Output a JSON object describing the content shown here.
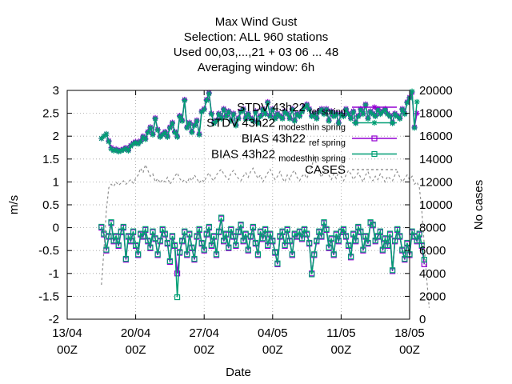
{
  "chart_data": {
    "type": "line",
    "title_lines": [
      "Max Wind Gust",
      "Selection: ALL    960 stations",
      "Used  00,03,...,21  + 03 06 ... 48",
      "Averaging window:  6h"
    ],
    "xlabel": "Date",
    "ylabel": "m/s",
    "y2label": "No cases",
    "x_ticks": [
      {
        "day": 0,
        "line1": "13/04",
        "line2": "00Z"
      },
      {
        "day": 7,
        "line1": "20/04",
        "line2": "00Z"
      },
      {
        "day": 14,
        "line1": "27/04",
        "line2": "00Z"
      },
      {
        "day": 21,
        "line1": "04/05",
        "line2": "00Z"
      },
      {
        "day": 28,
        "line1": "11/05",
        "line2": "00Z"
      },
      {
        "day": 35,
        "line1": "18/05",
        "line2": "00Z"
      }
    ],
    "xlim_days": [
      0,
      35
    ],
    "ylim": [
      -2,
      3
    ],
    "y_ticks": [
      "-2",
      "-1.5",
      "-1",
      "-0.5",
      "0",
      "0.5",
      "1",
      "1.5",
      "2",
      "2.5",
      "3"
    ],
    "y2lim": [
      0,
      20000
    ],
    "y2_ticks": [
      "0",
      "2000",
      "4000",
      "6000",
      "8000",
      "10000",
      "12000",
      "14000",
      "16000",
      "18000",
      "20000"
    ],
    "grid": true,
    "legend_position": "top-right",
    "series": [
      {
        "name": "STDV 43h22_ref_spring",
        "legend_base": "STDV 43h22",
        "legend_parts": [
          "ref",
          "spring"
        ],
        "axis": "y",
        "color": "#9400d3",
        "marker": "star",
        "dash": "",
        "start_day": 3.5,
        "step_day": 0.25,
        "values": [
          1.95,
          2.0,
          2.05,
          1.9,
          1.75,
          1.7,
          1.72,
          1.68,
          1.7,
          1.72,
          1.75,
          1.7,
          1.8,
          1.85,
          1.88,
          1.85,
          1.9,
          2.0,
          1.95,
          2.1,
          2.2,
          2.05,
          2.4,
          2.15,
          2.0,
          2.05,
          2.1,
          2.0,
          2.2,
          2.3,
          2.1,
          2.0,
          2.45,
          2.35,
          2.8,
          2.2,
          2.3,
          2.1,
          2.25,
          2.35,
          2.05,
          2.55,
          2.6,
          2.8,
          2.95,
          2.5,
          2.3,
          2.35,
          2.5,
          2.4,
          2.6,
          2.45,
          2.55,
          2.35,
          2.5,
          2.25,
          2.4,
          2.55,
          2.6,
          2.4,
          2.5,
          2.4,
          2.35,
          2.55,
          2.3,
          2.45,
          2.6,
          2.5,
          2.75,
          2.45,
          2.6,
          2.4,
          2.5,
          2.45,
          2.4,
          2.55,
          2.5,
          2.4,
          2.6,
          2.35,
          2.5,
          2.45,
          2.55,
          2.65,
          2.7,
          2.6,
          2.45,
          2.5,
          2.4,
          2.55,
          2.6,
          2.5,
          2.6,
          2.35,
          2.55,
          2.45,
          2.5,
          2.3,
          2.5,
          2.45,
          2.6,
          2.5,
          2.4,
          2.55,
          2.3,
          2.45,
          2.6,
          2.5,
          2.7,
          2.4,
          2.55,
          2.5,
          2.45,
          2.6,
          2.5,
          2.55,
          2.6,
          2.5,
          2.45,
          2.3,
          2.5,
          2.45,
          2.4,
          2.6,
          2.5,
          2.75,
          2.85,
          2.95,
          2.2,
          2.5
        ]
      },
      {
        "name": "STDV 43h22_modesthin_spring",
        "legend_base": "STDV 43h22",
        "legend_parts": [
          "modesthin",
          "spring"
        ],
        "axis": "y",
        "color": "#009e73",
        "marker": "star",
        "dash": "",
        "start_day": 3.5,
        "step_day": 0.25,
        "values": [
          1.95,
          2.0,
          2.05,
          1.88,
          1.72,
          1.68,
          1.7,
          1.66,
          1.68,
          1.7,
          1.73,
          1.68,
          1.78,
          1.83,
          1.86,
          1.83,
          1.88,
          1.98,
          1.93,
          2.08,
          2.18,
          2.03,
          2.38,
          2.13,
          1.98,
          2.03,
          2.08,
          1.98,
          2.18,
          2.28,
          2.08,
          1.98,
          2.43,
          2.33,
          2.78,
          2.18,
          2.28,
          2.08,
          2.23,
          2.33,
          2.03,
          2.53,
          2.58,
          2.78,
          2.93,
          2.48,
          2.28,
          2.33,
          2.48,
          2.38,
          2.58,
          2.43,
          2.53,
          2.33,
          2.48,
          2.23,
          2.38,
          2.53,
          2.58,
          2.38,
          2.48,
          2.38,
          2.33,
          2.53,
          2.28,
          2.43,
          2.58,
          2.48,
          2.73,
          2.43,
          2.58,
          2.38,
          2.48,
          2.43,
          2.38,
          2.53,
          2.48,
          2.38,
          2.58,
          2.33,
          2.48,
          2.43,
          2.53,
          2.63,
          2.68,
          2.58,
          2.43,
          2.48,
          2.38,
          2.53,
          2.58,
          2.48,
          2.58,
          2.33,
          2.53,
          2.43,
          2.48,
          2.28,
          2.48,
          2.43,
          2.58,
          2.48,
          2.38,
          2.53,
          2.28,
          2.43,
          2.58,
          2.48,
          2.68,
          2.38,
          2.53,
          2.48,
          2.43,
          2.58,
          2.48,
          2.53,
          2.58,
          2.48,
          2.43,
          2.28,
          2.48,
          2.43,
          2.38,
          2.58,
          2.48,
          2.73,
          2.83,
          2.98,
          2.18,
          2.75
        ]
      },
      {
        "name": "BIAS 43h22_ref_spring",
        "legend_base": "BIAS 43h22",
        "legend_parts": [
          "ref",
          "spring"
        ],
        "axis": "y",
        "color": "#9400d3",
        "marker": "square",
        "dash": "",
        "start_day": 3.5,
        "step_day": 0.25,
        "values": [
          0.0,
          -0.15,
          -0.5,
          -0.2,
          0.1,
          -0.3,
          -0.2,
          -0.4,
          -0.1,
          0.0,
          -0.7,
          -0.2,
          -0.3,
          -0.1,
          -0.4,
          -0.6,
          -0.15,
          -0.2,
          -0.05,
          -0.3,
          -0.45,
          -0.1,
          -0.25,
          -0.6,
          -0.3,
          -0.05,
          -0.15,
          -0.35,
          -0.75,
          -0.2,
          -0.4,
          -1.0,
          -0.55,
          -0.3,
          -0.1,
          -0.6,
          -0.15,
          -0.45,
          -0.7,
          -0.2,
          -0.05,
          -0.35,
          -0.5,
          -0.15,
          0.0,
          -0.4,
          -0.2,
          -0.6,
          -0.1,
          0.2,
          -0.3,
          -0.15,
          -0.45,
          -0.05,
          -0.2,
          -0.4,
          -0.1,
          0.05,
          -0.3,
          -0.15,
          -0.5,
          -0.2,
          0.0,
          -0.35,
          -0.6,
          -0.1,
          -0.25,
          -0.05,
          -0.4,
          -0.15,
          -0.3,
          -0.55,
          -0.8,
          -0.2,
          -0.1,
          -0.4,
          -0.05,
          -0.3,
          -0.6,
          -0.15,
          -0.2,
          -0.1,
          -0.25,
          -0.05,
          -0.15,
          -0.35,
          -1.0,
          -0.6,
          -0.3,
          -0.1,
          -0.2,
          0.1,
          -0.05,
          -0.45,
          -0.25,
          -0.6,
          -0.15,
          -0.3,
          -0.1,
          -0.05,
          -0.2,
          -0.4,
          -0.65,
          -0.15,
          -0.3,
          0.0,
          -0.1,
          -0.5,
          -0.2,
          -0.35,
          0.1,
          0.05,
          -0.3,
          -0.2,
          -0.1,
          -0.5,
          -0.25,
          -0.4,
          -0.15,
          -0.95,
          -0.3,
          -0.05,
          -0.2,
          -0.5,
          -0.7,
          -0.35,
          -0.6,
          -0.1,
          -0.2,
          -0.3,
          -0.15,
          -0.4,
          -0.8
        ]
      },
      {
        "name": "BIAS 43h22_modesthin_spring",
        "legend_base": "BIAS 43h22",
        "legend_parts": [
          "modesthin",
          "spring"
        ],
        "axis": "y",
        "color": "#009e73",
        "marker": "square",
        "dash": "",
        "start_day": 3.5,
        "step_day": 0.25,
        "values": [
          0.02,
          -0.13,
          -0.48,
          -0.18,
          0.12,
          -0.28,
          -0.18,
          -0.38,
          -0.08,
          0.02,
          -0.68,
          -0.18,
          -0.28,
          -0.08,
          -0.38,
          -0.58,
          -0.13,
          -0.18,
          -0.03,
          -0.28,
          -0.43,
          -0.08,
          -0.23,
          -0.58,
          -0.28,
          -0.03,
          -0.13,
          -0.33,
          -0.73,
          -0.18,
          -0.38,
          -1.52,
          -0.53,
          -0.28,
          -0.08,
          -0.58,
          -0.13,
          -0.43,
          -0.68,
          -0.18,
          -0.03,
          -0.33,
          -0.48,
          -0.13,
          0.02,
          -0.38,
          -0.18,
          -0.58,
          -0.08,
          0.22,
          -0.28,
          -0.13,
          -0.43,
          -0.03,
          -0.18,
          -0.38,
          -0.08,
          0.07,
          -0.28,
          -0.13,
          -0.48,
          -0.18,
          0.02,
          -0.33,
          -0.58,
          -0.08,
          -0.23,
          -0.03,
          -0.38,
          -0.13,
          -0.28,
          -0.53,
          -0.78,
          -0.18,
          -0.08,
          -0.38,
          -0.03,
          -0.28,
          -0.58,
          -0.13,
          -0.18,
          -0.08,
          -0.23,
          -0.03,
          -0.13,
          -0.33,
          -1.02,
          -0.58,
          -0.28,
          -0.08,
          -0.18,
          0.12,
          -0.03,
          -0.43,
          -0.23,
          -0.58,
          -0.13,
          -0.28,
          -0.08,
          -0.03,
          -0.18,
          -0.38,
          -0.63,
          -0.13,
          -0.28,
          0.02,
          -0.08,
          -0.48,
          -0.18,
          -0.33,
          0.12,
          0.07,
          -0.28,
          -0.18,
          -0.08,
          -0.48,
          -0.23,
          -0.38,
          -0.13,
          -0.93,
          -0.28,
          -0.03,
          -0.18,
          -0.48,
          -0.68,
          -0.33,
          -0.58,
          -0.08,
          -0.18,
          -0.28,
          -0.13,
          -0.38,
          -0.7
        ]
      },
      {
        "name": "CASES",
        "legend_base": "CASES",
        "legend_parts": [],
        "axis": "y2",
        "color": "#909090",
        "marker": "none",
        "dash": "3,3",
        "start_day": 3.5,
        "step_day": 0.25,
        "values": [
          3000,
          6000,
          9500,
          11500,
          11800,
          11600,
          12000,
          11700,
          11900,
          12100,
          11800,
          12000,
          12200,
          11900,
          12300,
          12600,
          13200,
          12800,
          13500,
          13000,
          12500,
          12700,
          12000,
          12300,
          11900,
          12200,
          12000,
          12400,
          11800,
          12100,
          12500,
          12800,
          12300,
          12000,
          12200,
          11900,
          12400,
          12100,
          12600,
          12300,
          11900,
          12200,
          12000,
          12500,
          12800,
          12300,
          12100,
          12600,
          12900,
          13100,
          12700,
          12400,
          12200,
          12800,
          13000,
          12600,
          12300,
          12100,
          12500,
          12800,
          12400,
          12900,
          13200,
          12700,
          12300,
          12600,
          12000,
          12400,
          12800,
          13100,
          12600,
          12200,
          12500,
          12900,
          12300,
          12000,
          12600,
          12200,
          12800,
          13000,
          12400,
          12100,
          12500,
          12700,
          12300,
          12900,
          13300,
          14300,
          13500,
          12800,
          12400,
          12900,
          13100,
          12600,
          12200,
          12700,
          12300,
          12900,
          12500,
          12100,
          12600,
          13000,
          12700,
          12200,
          12500,
          12800,
          12400,
          12000,
          12600,
          12900,
          12300,
          12100,
          12500,
          12200,
          12700,
          12400,
          12000,
          12500,
          12300,
          12100,
          12600,
          12900,
          12400,
          12000,
          12300,
          12600,
          12200,
          12500,
          11800,
          12000,
          11500,
          9500,
          6500,
          3500,
          1000
        ]
      }
    ]
  }
}
